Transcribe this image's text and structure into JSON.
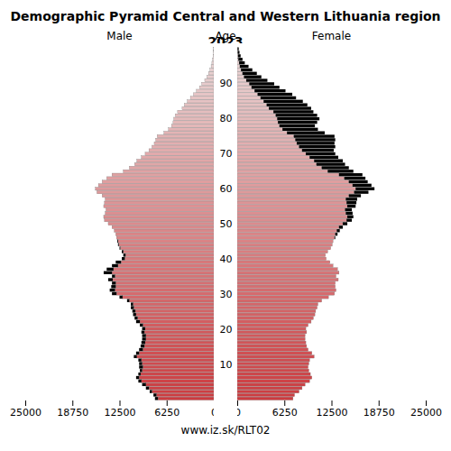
{
  "chart_data": {
    "type": "pyramid",
    "title": "Demographic Pyramid Central and Western Lithuania region 2023",
    "ylabel": "Age",
    "caption": "www.iz.sk/RLT02",
    "categories": [
      0,
      1,
      2,
      3,
      4,
      5,
      6,
      7,
      8,
      9,
      10,
      11,
      12,
      13,
      14,
      15,
      16,
      17,
      18,
      19,
      20,
      21,
      22,
      23,
      24,
      25,
      26,
      27,
      28,
      29,
      30,
      31,
      32,
      33,
      34,
      35,
      36,
      37,
      38,
      39,
      40,
      41,
      42,
      43,
      44,
      45,
      46,
      47,
      48,
      49,
      50,
      51,
      52,
      53,
      54,
      55,
      56,
      57,
      58,
      59,
      60,
      61,
      62,
      63,
      64,
      65,
      66,
      67,
      68,
      69,
      70,
      71,
      72,
      73,
      74,
      75,
      76,
      77,
      78,
      79,
      80,
      81,
      82,
      83,
      84,
      85,
      86,
      87,
      88,
      89,
      90,
      91,
      92,
      93,
      94,
      95,
      96,
      97,
      98,
      99,
      100
    ],
    "series": [
      {
        "name": "Male",
        "values": [
          7800,
          8000,
          8500,
          9000,
          9500,
          10000,
          10300,
          10000,
          9800,
          9900,
          9900,
          10000,
          10600,
          10300,
          9900,
          9700,
          9600,
          9500,
          9500,
          9600,
          9500,
          9800,
          10300,
          10500,
          10700,
          10800,
          11000,
          11000,
          11500,
          12500,
          13500,
          13800,
          13600,
          13500,
          14000,
          13500,
          14600,
          14200,
          13500,
          13000,
          12200,
          12000,
          12200,
          12500,
          12700,
          12800,
          12900,
          13000,
          13200,
          13500,
          14000,
          14500,
          14600,
          14400,
          14300,
          14600,
          14500,
          14400,
          14800,
          15500,
          15700,
          15300,
          14800,
          14200,
          13500,
          12000,
          11200,
          10500,
          10200,
          9600,
          9100,
          8600,
          8200,
          7900,
          7700,
          7500,
          6600,
          6000,
          5600,
          5400,
          5300,
          5100,
          4800,
          4200,
          3900,
          3500,
          3100,
          2700,
          2300,
          1900,
          1600,
          1200,
          900,
          700,
          500,
          350,
          250,
          150,
          100,
          60,
          40
        ]
      },
      {
        "name": "Female",
        "values": [
          7400,
          7600,
          8200,
          8600,
          9000,
          9600,
          9900,
          9700,
          9500,
          9400,
          9500,
          9600,
          10200,
          9900,
          9400,
          9200,
          9100,
          9000,
          9000,
          9200,
          9100,
          9400,
          9800,
          10100,
          10300,
          10400,
          10600,
          10700,
          11200,
          12100,
          12900,
          13100,
          13000,
          13000,
          13400,
          13100,
          13500,
          13300,
          12700,
          12300,
          11800,
          11700,
          12000,
          12400,
          12600,
          12700,
          13000,
          13300,
          13600,
          14000,
          14600,
          15200,
          15400,
          15300,
          15200,
          15700,
          15800,
          15900,
          16400,
          17400,
          18200,
          17800,
          17300,
          17000,
          16600,
          15400,
          14800,
          14300,
          14000,
          13400,
          13000,
          12800,
          13000,
          12900,
          13000,
          12900,
          11600,
          10700,
          10300,
          10600,
          10900,
          10600,
          10100,
          9800,
          9300,
          8700,
          7800,
          7300,
          6400,
          5600,
          4900,
          4000,
          3200,
          2600,
          2000,
          1500,
          1000,
          700,
          450,
          300,
          200
        ]
      }
    ],
    "xlim": [
      0,
      25000
    ],
    "xticks": [
      0,
      6250,
      12500,
      18750,
      25000
    ],
    "yticks": [
      10,
      20,
      30,
      40,
      50,
      60,
      70,
      80,
      90
    ]
  }
}
